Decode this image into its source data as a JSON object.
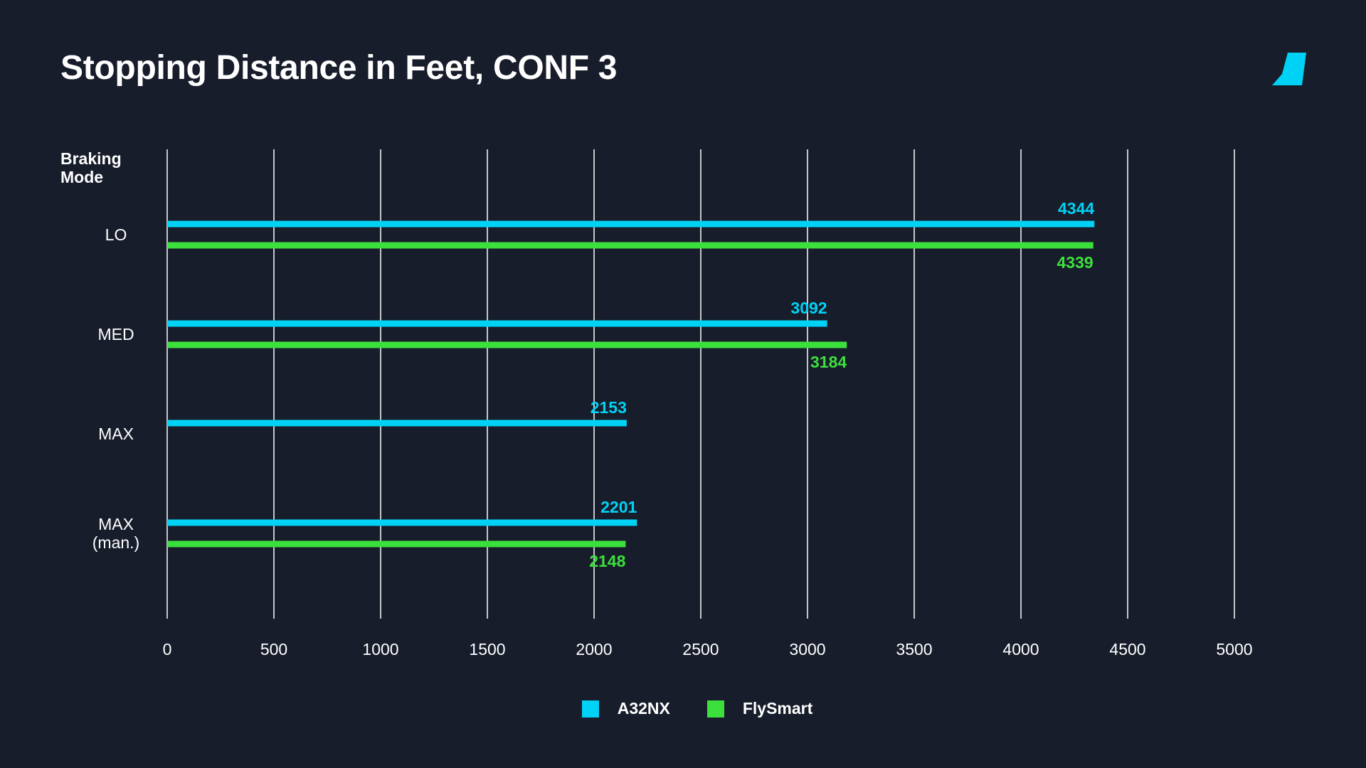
{
  "chart_data": {
    "type": "bar",
    "orientation": "horizontal",
    "title": "Stopping Distance in Feet, CONF 3",
    "ylabel": "Braking\nMode",
    "xlabel": "",
    "categories": [
      [
        "LO"
      ],
      [
        "MED"
      ],
      [
        "MAX"
      ],
      [
        "MAX",
        "(man.)"
      ]
    ],
    "xlim": [
      0,
      5000
    ],
    "xticks": [
      0,
      500,
      1000,
      1500,
      2000,
      2500,
      3000,
      3500,
      4000,
      4500,
      5000
    ],
    "grid": true,
    "legend_position": "bottom",
    "series": [
      {
        "name": "A32NX",
        "color": "#00d2f5",
        "values": [
          4344,
          3092,
          2153,
          2201
        ]
      },
      {
        "name": "FlySmart",
        "color": "#3ce03c",
        "values": [
          4339,
          3184,
          null,
          2148
        ]
      }
    ]
  },
  "colors": {
    "background": "#171d2b",
    "text": "#ffffff",
    "grid": "#ffffff",
    "logo": "#00d2f5"
  },
  "logo_icon": "tail-fin-icon"
}
